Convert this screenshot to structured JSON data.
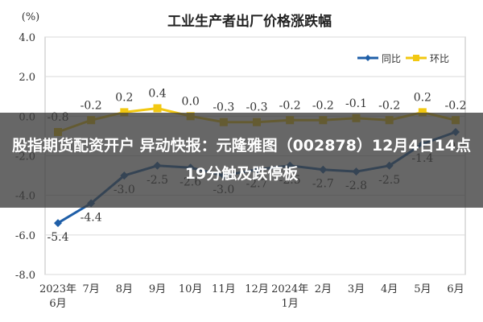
{
  "chart_data": {
    "type": "line",
    "title": "工业生产者出厂价格涨跌幅",
    "y_unit": "(%)",
    "ylim": [
      -8.0,
      4.0
    ],
    "y_ticks": [
      "4.0",
      "2.0",
      "0.0",
      "-2.0",
      "-4.0",
      "-6.0",
      "-8.0"
    ],
    "y_tick_values": [
      4,
      2,
      0,
      -2,
      -4,
      -6,
      -8
    ],
    "categories": [
      [
        "2023年",
        "6月"
      ],
      [
        "7月"
      ],
      [
        "8月"
      ],
      [
        "9月"
      ],
      [
        "10月"
      ],
      [
        "11月"
      ],
      [
        "12月"
      ],
      [
        "2024年",
        "1月"
      ],
      [
        "2月"
      ],
      [
        "3月"
      ],
      [
        "4月"
      ],
      [
        "5月"
      ],
      [
        "6月"
      ]
    ],
    "legend": {
      "position": "top-right"
    },
    "grid": true,
    "series": [
      {
        "name": "同比",
        "color": "#1f5fa8",
        "values": [
          -5.4,
          -4.4,
          -3.0,
          -2.5,
          -2.6,
          -3.0,
          -2.7,
          -2.5,
          -2.7,
          -2.8,
          -2.5,
          -1.4,
          -0.8
        ],
        "labels": [
          "-5.4",
          "-4.4",
          "-3.0",
          "-2.5",
          "-2.6",
          "-3.0",
          "-2.7",
          "-2.5",
          "-2.7",
          "-2.8",
          "-2.5",
          "-1.4",
          "-0.8"
        ]
      },
      {
        "name": "环比",
        "color": "#f2c811",
        "values": [
          -0.8,
          -0.2,
          0.2,
          0.4,
          0.0,
          -0.3,
          -0.3,
          -0.2,
          -0.2,
          -0.1,
          -0.2,
          0.2,
          -0.2
        ],
        "labels": [
          "-0.8",
          "-0.2",
          "0.2",
          "0.4",
          "0.0",
          "-0.3",
          "-0.3",
          "-0.2",
          "-0.2",
          "-0.1",
          "-0.2",
          "0.2",
          "-0.2"
        ]
      }
    ]
  },
  "overlay": {
    "headline": "股指期货配资开户 异动快报：元隆雅图（002878）12月4日14点19分触及跌停板"
  }
}
